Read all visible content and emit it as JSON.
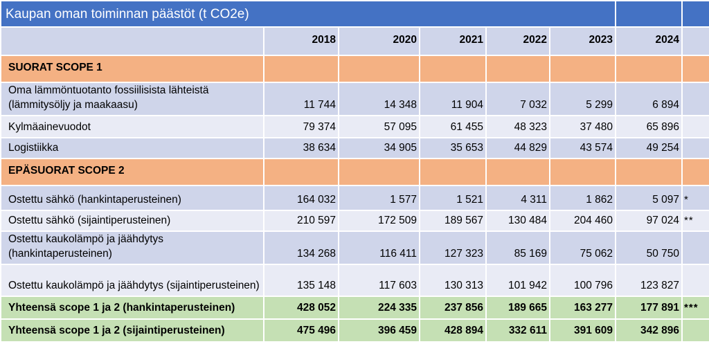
{
  "title": "Kaupan oman toiminnan päästöt (t CO2e)",
  "years": [
    "2018",
    "2020",
    "2021",
    "2022",
    "2023",
    "2024"
  ],
  "rows": [
    {
      "type": "section",
      "label": "SUORAT SCOPE 1"
    },
    {
      "type": "data",
      "label": "Oma lämmöntuotanto fossiilisista lähteistä (lämmitysöljy ja maakaasu)",
      "values": [
        "11 744",
        "14 348",
        "11 904",
        "7 032",
        "5 299",
        "6 894"
      ],
      "mark": ""
    },
    {
      "type": "data",
      "label": "Kylmäainevuodot",
      "values": [
        "79 374",
        "57 095",
        "61 455",
        "48 323",
        "37 480",
        "65 896"
      ],
      "mark": ""
    },
    {
      "type": "data",
      "label": "Logistiikka",
      "values": [
        "38 634",
        "34 905",
        "35 653",
        "44 829",
        "43 574",
        "49 254"
      ],
      "mark": ""
    },
    {
      "type": "section",
      "label": "EPÄSUORAT SCOPE 2"
    },
    {
      "type": "data",
      "label": "Ostettu sähkö (hankintaperusteinen)",
      "values": [
        "164 032",
        "1 577",
        "1 521",
        "4 311",
        "1 862",
        "5 097"
      ],
      "mark": "*"
    },
    {
      "type": "data",
      "label": "Ostettu sähkö (sijaintiperusteinen)",
      "values": [
        "210 597",
        "172 509",
        "189 567",
        "130 484",
        "204 460",
        "97 024"
      ],
      "mark": "**"
    },
    {
      "type": "data",
      "label": "Ostettu kaukolämpö ja jäähdytys (hankintaperusteinen)",
      "values": [
        "134 268",
        "116 411",
        "127 323",
        "85 169",
        "75 062",
        "50 750"
      ],
      "mark": ""
    },
    {
      "type": "data",
      "label": "Ostettu kaukolämpö ja jäähdytys (sijaintiperusteinen)",
      "values": [
        "135 148",
        "117 603",
        "130 313",
        "101 942",
        "100 796",
        "123 827"
      ],
      "mark": ""
    },
    {
      "type": "total",
      "label": "Yhteensä scope 1 ja 2 (hankintaperusteinen)",
      "values": [
        "428 052",
        "224 335",
        "237 856",
        "189 665",
        "163 277",
        "177 891"
      ],
      "mark": "***"
    },
    {
      "type": "total",
      "label": "Yhteensä scope 1 ja 2 (sijaintiperusteinen)",
      "values": [
        "475 496",
        "396 459",
        "428 894",
        "332 611",
        "391 609",
        "342 896"
      ],
      "mark": ""
    }
  ]
}
